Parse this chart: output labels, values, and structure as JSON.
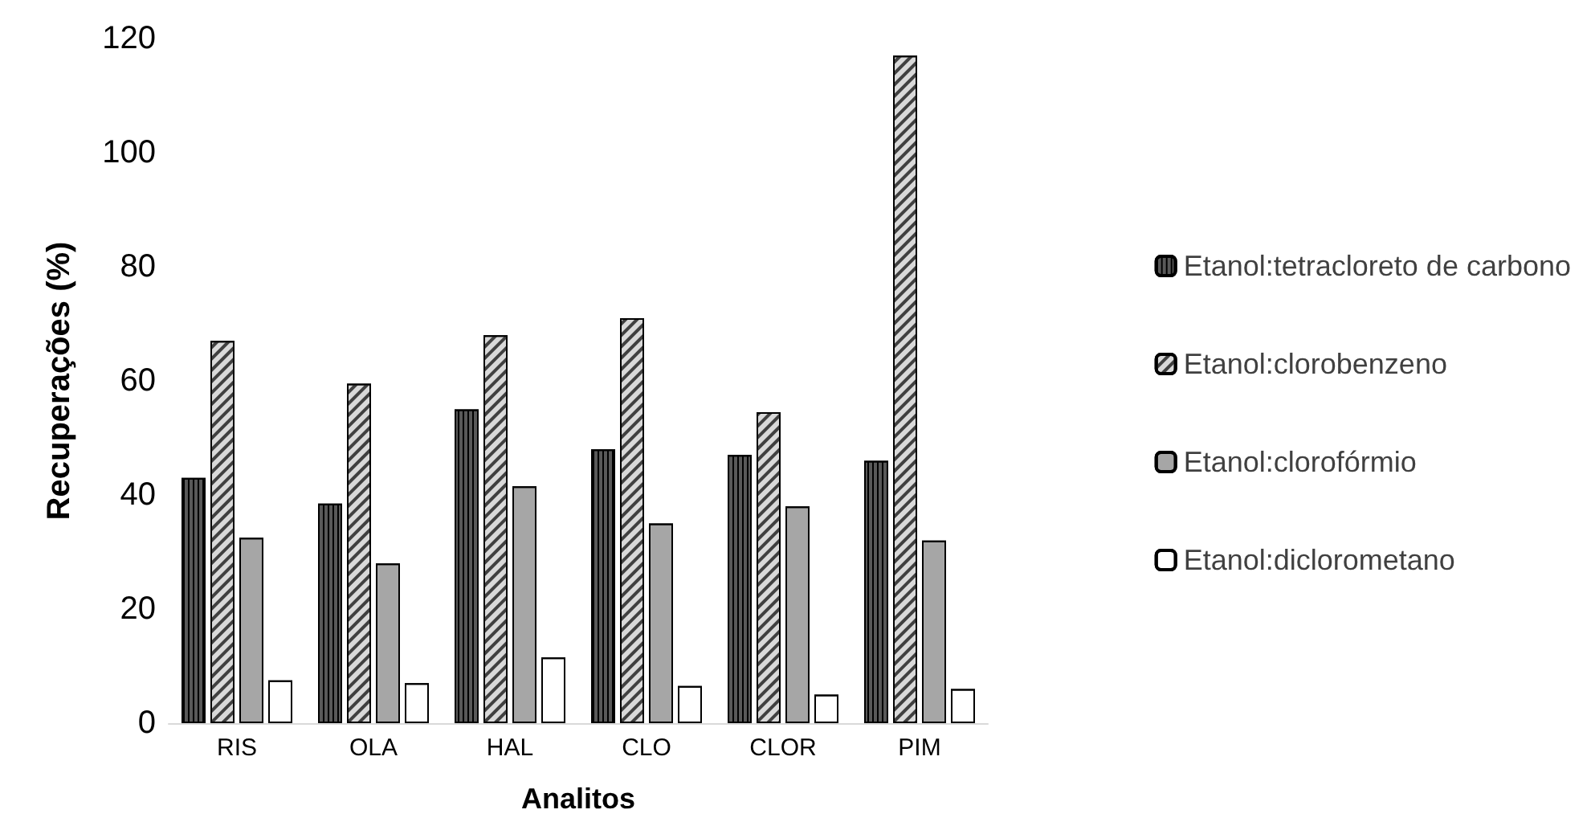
{
  "chart_data": {
    "type": "bar",
    "xlabel": "Analitos",
    "ylabel": "Recuperações (%)",
    "categories": [
      "RIS",
      "OLA",
      "HAL",
      "CLO",
      "CLOR",
      "PIM"
    ],
    "series": [
      {
        "name": "Etanol:tetracloreto de carbono",
        "color": "#595959",
        "values": [
          43,
          38.5,
          55,
          48,
          47,
          46
        ]
      },
      {
        "name": "Etanol:clorobenzeno",
        "color": "#d9d9d9",
        "values": [
          67,
          59.5,
          68,
          71,
          54.5,
          117
        ]
      },
      {
        "name": "Etanol:clorofórmio",
        "color": "#a6a6a6",
        "values": [
          32.5,
          28,
          41.5,
          35,
          38,
          32
        ]
      },
      {
        "name": "Etanol:diclorometano",
        "color": "#ffffff",
        "values": [
          7.5,
          7,
          11.5,
          6.5,
          5,
          6
        ]
      }
    ],
    "ylim": [
      0,
      120
    ],
    "yticks": [
      0,
      20,
      40,
      60,
      80,
      100,
      120
    ],
    "grid": false,
    "legend": "right"
  }
}
